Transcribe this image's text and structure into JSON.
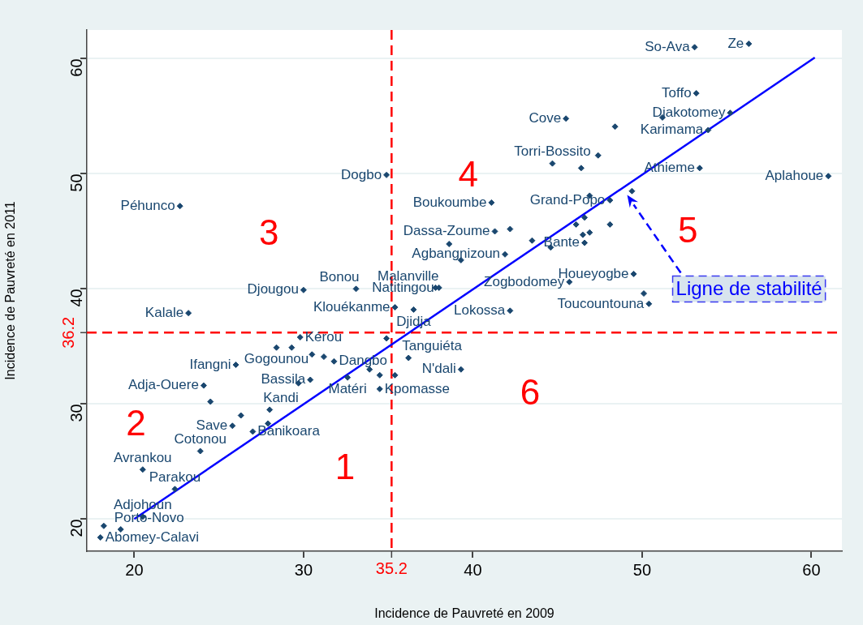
{
  "chart_data": {
    "type": "scatter",
    "xlabel": "Incidence de Pauvreté en 2009",
    "ylabel": "Incidence de Pauvreté en 2011",
    "xlim": [
      17.2,
      61.8
    ],
    "ylim": [
      17.2,
      62.5
    ],
    "xticks": [
      20,
      30,
      40,
      50,
      60
    ],
    "yticks": [
      20,
      30,
      40,
      50,
      60
    ],
    "grid": "y",
    "marker": "diamond",
    "series": [
      {
        "color": "#1a476f",
        "value_labels": [
          "Péhunco",
          "Djougou",
          "Dogbo",
          "Cove",
          "Torri-Bossito",
          null,
          null,
          "Boukoumbe",
          "Dassa-Zoume",
          null,
          null,
          null,
          null,
          "Agbangnizoun",
          null,
          null,
          null,
          null,
          null,
          null,
          "Bante",
          "Grand-Popo",
          null,
          null,
          "Zogbodomey",
          "Houeyogbe",
          "Malanville",
          "Natitingou",
          "Bonou",
          "So-Ava",
          "Ze",
          "Toffo",
          null,
          "Djakotomey",
          null,
          "Karimama",
          "Athieme",
          "Aplahoue",
          null,
          "Toucountouna",
          "Klouékanme",
          "Djidja",
          "Lokossa",
          null,
          "Tanguiéta",
          "N'dali",
          "Dangbo",
          null,
          "Matéri",
          null,
          null,
          "Kpomasse",
          "Kalale",
          "Kérou",
          "Gogounou",
          null,
          null,
          null,
          "Ifangni",
          "Bassila",
          null,
          "Adja-Ouere",
          null,
          "Kandi",
          null,
          "Save",
          null,
          "Banikoara",
          "Cotonou",
          "Avrankou",
          "Parakou",
          "Adjohoun",
          null,
          "Porto-Novo",
          "Abomey-Calavi"
        ],
        "x": [
          22.7,
          30.0,
          34.9,
          45.5,
          44.7,
          46.4,
          47.4,
          41.1,
          41.3,
          42.2,
          38.6,
          43.5,
          44.6,
          41.9,
          39.3,
          46.9,
          46.6,
          46.1,
          46.5,
          46.9,
          46.6,
          48.1,
          49.4,
          48.1,
          45.7,
          49.5,
          37.8,
          38.0,
          33.1,
          53.1,
          56.3,
          53.2,
          51.2,
          55.2,
          48.4,
          53.9,
          53.4,
          61.0,
          50.1,
          50.4,
          35.4,
          36.5,
          42.2,
          34.9,
          36.2,
          39.3,
          31.8,
          33.9,
          32.6,
          34.5,
          35.4,
          34.5,
          23.2,
          29.8,
          28.4,
          29.3,
          30.5,
          31.2,
          26.0,
          30.4,
          29.7,
          24.1,
          24.5,
          28.0,
          26.3,
          25.8,
          27.9,
          27.0,
          23.9,
          20.5,
          22.4,
          20.5,
          18.2,
          19.2,
          18.0
        ],
        "values": [
          47.2,
          39.9,
          49.9,
          54.8,
          50.9,
          50.5,
          51.6,
          47.5,
          45.0,
          45.2,
          43.9,
          44.2,
          43.6,
          43.0,
          42.5,
          48.1,
          46.2,
          45.6,
          44.7,
          44.9,
          44.0,
          47.7,
          48.5,
          45.6,
          40.6,
          41.3,
          40.1,
          40.1,
          40.0,
          61.0,
          61.3,
          57.0,
          54.9,
          55.3,
          54.1,
          53.8,
          50.5,
          49.8,
          39.6,
          38.7,
          38.4,
          38.2,
          38.1,
          35.7,
          34.0,
          33.0,
          33.7,
          33.0,
          32.3,
          32.5,
          32.5,
          31.3,
          37.9,
          35.8,
          34.9,
          34.9,
          34.3,
          34.1,
          33.4,
          32.1,
          31.8,
          31.6,
          30.2,
          29.5,
          29.0,
          28.1,
          28.3,
          27.6,
          25.9,
          24.3,
          22.6,
          20.2,
          19.4,
          19.1,
          18.4
        ]
      },
      {
        "type": "line",
        "color": "#0000ff",
        "marker": "none",
        "x": [
          20,
          60.2
        ],
        "values": [
          20,
          60.1
        ]
      }
    ],
    "ref_lines": [
      {
        "axis": "x",
        "value": 35.2,
        "label": "35.2",
        "color": "#ff0000",
        "line_style": "dashed"
      },
      {
        "axis": "y",
        "value": 36.2,
        "label": "36.2",
        "color": "#ff0000",
        "line_style": "dashed"
      }
    ],
    "annotations": [
      "1",
      "2",
      "3",
      "4",
      "5",
      "6",
      "Ligne de stabilité"
    ]
  }
}
